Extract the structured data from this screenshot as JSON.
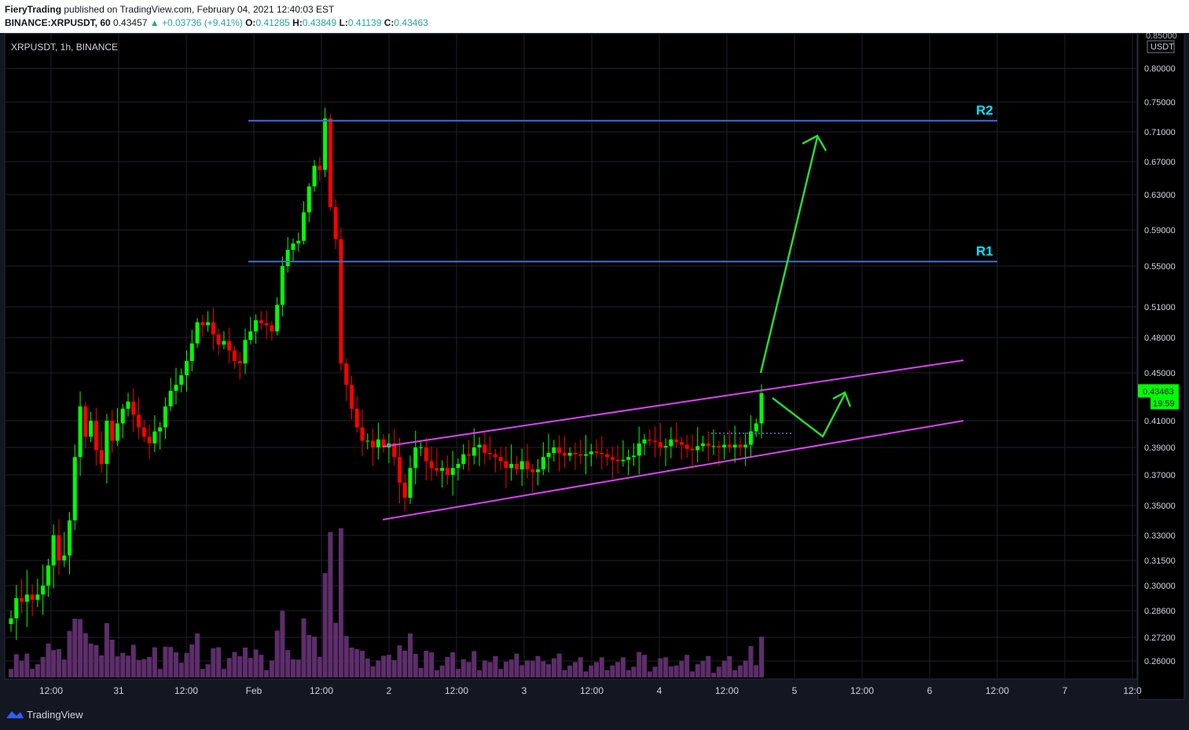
{
  "header": {
    "author": "FieryTrading",
    "published_text": "published on TradingView.com, February 04, 2021 12:40:03 EST",
    "symbol_line": "BINANCE:XRPUSDT, 60",
    "last": "0.43457",
    "change": "▲ +0.03736 (+9.41%)",
    "o_label": "O:",
    "o_value": "0.41285",
    "h_label": "H:",
    "h_value": "0.43849",
    "l_label": "L:",
    "l_value": "0.41139",
    "c_label": "C:",
    "c_value": "0.43463"
  },
  "chart_legend": "XRPUSDT, 1h, BINANCE",
  "price_axis": {
    "currency": "USDT",
    "top_label": "0.85000",
    "last_price": "0.43463",
    "countdown": "19:59"
  },
  "annotations": {
    "r1": "R1",
    "r2": "R2"
  },
  "footer": {
    "brand": "TradingView"
  },
  "colors": {
    "background": "#131722",
    "up": "#00ff00",
    "down": "#ff0000",
    "volume": "#5d2e6b",
    "channel": "#e040fb",
    "resistance": "#3d6fd6",
    "resistance_label": "#00e5ff",
    "projection": "#2bd934"
  },
  "chart_data": {
    "type": "candlestick",
    "symbol": "XRPUSDT",
    "interval": "1h",
    "exchange": "BINANCE",
    "y_ticks": [
      "0.80000",
      "0.75000",
      "0.71000",
      "0.67000",
      "0.63000",
      "0.59000",
      "0.55000",
      "0.51000",
      "0.48000",
      "0.45000",
      "0.43463",
      "0.41000",
      "0.39000",
      "0.37000",
      "0.35000",
      "0.33000",
      "0.31500",
      "0.30000",
      "0.28600",
      "0.27200",
      "0.26000"
    ],
    "x_ticks": [
      "12:00",
      "31",
      "12:00",
      "Feb",
      "12:00",
      "2",
      "12:00",
      "3",
      "12:00",
      "4",
      "12:00",
      "5",
      "12:00",
      "6",
      "12:00",
      "7",
      "12:0"
    ],
    "r1": 0.555,
    "r2": 0.725,
    "closes": [
      0.282,
      0.293,
      0.291,
      0.295,
      0.292,
      0.295,
      0.3,
      0.312,
      0.33,
      0.315,
      0.318,
      0.34,
      0.383,
      0.422,
      0.398,
      0.41,
      0.388,
      0.378,
      0.41,
      0.395,
      0.408,
      0.42,
      0.426,
      0.415,
      0.405,
      0.398,
      0.393,
      0.402,
      0.405,
      0.422,
      0.435,
      0.44,
      0.448,
      0.46,
      0.475,
      0.495,
      0.492,
      0.495,
      0.483,
      0.474,
      0.477,
      0.469,
      0.46,
      0.458,
      0.478,
      0.486,
      0.497,
      0.494,
      0.492,
      0.486,
      0.512,
      0.55,
      0.568,
      0.575,
      0.578,
      0.61,
      0.64,
      0.665,
      0.66,
      0.728,
      0.616,
      0.58,
      0.458,
      0.44,
      0.42,
      0.405,
      0.395,
      0.395,
      0.39,
      0.396,
      0.39,
      0.393,
      0.383,
      0.365,
      0.355,
      0.375,
      0.39,
      0.39,
      0.38,
      0.375,
      0.373,
      0.375,
      0.37,
      0.375,
      0.378,
      0.385,
      0.384,
      0.39,
      0.392,
      0.386,
      0.385,
      0.383,
      0.38,
      0.375,
      0.378,
      0.374,
      0.38,
      0.374,
      0.372,
      0.374,
      0.383,
      0.386,
      0.39,
      0.386,
      0.384,
      0.386,
      0.385,
      0.384,
      0.385,
      0.387,
      0.386,
      0.385,
      0.383,
      0.381,
      0.38,
      0.381,
      0.383,
      0.384,
      0.393,
      0.396,
      0.395,
      0.394,
      0.39,
      0.391,
      0.396,
      0.394,
      0.392,
      0.389,
      0.388,
      0.391,
      0.393,
      0.391,
      0.391,
      0.39,
      0.392,
      0.39,
      0.392,
      0.39,
      0.392,
      0.402,
      0.408,
      0.433
    ],
    "volume_note": "volume histogram at bottom of pane, peaking near Feb 1 12:00"
  }
}
